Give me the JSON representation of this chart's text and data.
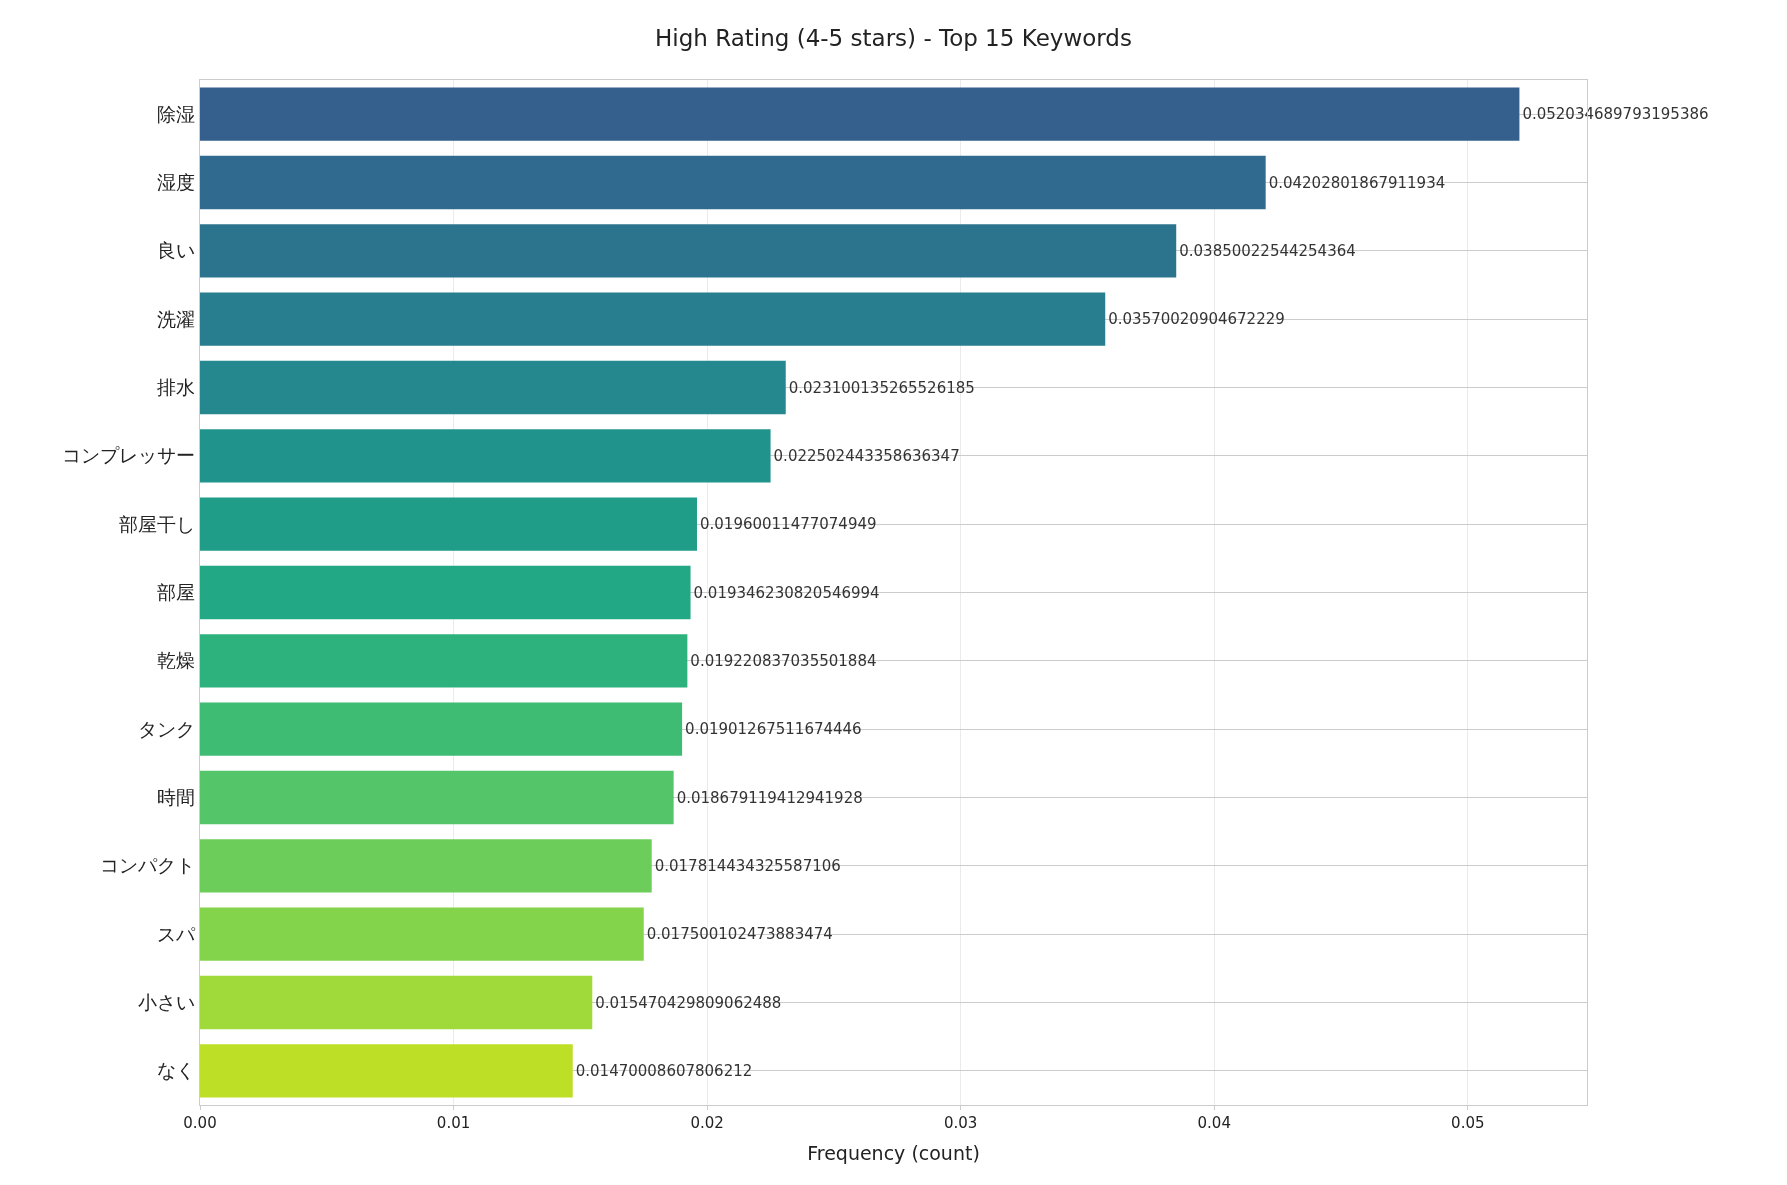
{
  "chart_data": {
    "type": "bar",
    "orientation": "horizontal",
    "title": "High Rating (4-5 stars) - Top 15 Keywords",
    "xlabel": "Frequency (count)",
    "categories": [
      "除湿",
      "湿度",
      "良い",
      "洗濯",
      "排水",
      "コンプレッサー",
      "部屋干し",
      "部屋",
      "乾燥",
      "タンク",
      "時間",
      "コンパクト",
      "スパ",
      "小さい",
      "なく"
    ],
    "values": [
      0.052034689793195386,
      0.04202801867911934,
      0.03850022544254364,
      0.03570020904672229,
      0.023100135265526185,
      0.022502443358636347,
      0.01960011477074949,
      0.019346230820546994,
      0.019220837035501884,
      0.01901267511674446,
      0.018679119412941928,
      0.017814434325587106,
      0.017500102473883474,
      0.015470429809062488,
      0.01470008607806212
    ],
    "value_labels": [
      "0.052034689793195386",
      "0.04202801867911934",
      "0.03850022544254364",
      "0.03570020904672229",
      "0.023100135265526185",
      "0.022502443358636347",
      "0.01960011477074949",
      "0.019346230820546994",
      "0.019220837035501884",
      "0.01901267511674446",
      "0.018679119412941928",
      "0.017814434325587106",
      "0.017500102473883474",
      "0.015470429809062488",
      "0.01470008607806212"
    ],
    "colors": [
      "#355f8d",
      "#306a8e",
      "#2c748e",
      "#287e8e",
      "#24888e",
      "#20938c",
      "#1f9d89",
      "#22a884",
      "#2db27d",
      "#3fbc73",
      "#54c568",
      "#6ccd5a",
      "#84d44b",
      "#9fda3a",
      "#bddf26"
    ],
    "xlim": [
      0,
      0.0547
    ],
    "xticks": [
      {
        "value": 0,
        "label": "0.00"
      },
      {
        "value": 0.01,
        "label": "0.01"
      },
      {
        "value": 0.02,
        "label": "0.02"
      },
      {
        "value": 0.03,
        "label": "0.03"
      },
      {
        "value": 0.04,
        "label": "0.04"
      },
      {
        "value": 0.05,
        "label": "0.05"
      }
    ],
    "grid": true
  }
}
